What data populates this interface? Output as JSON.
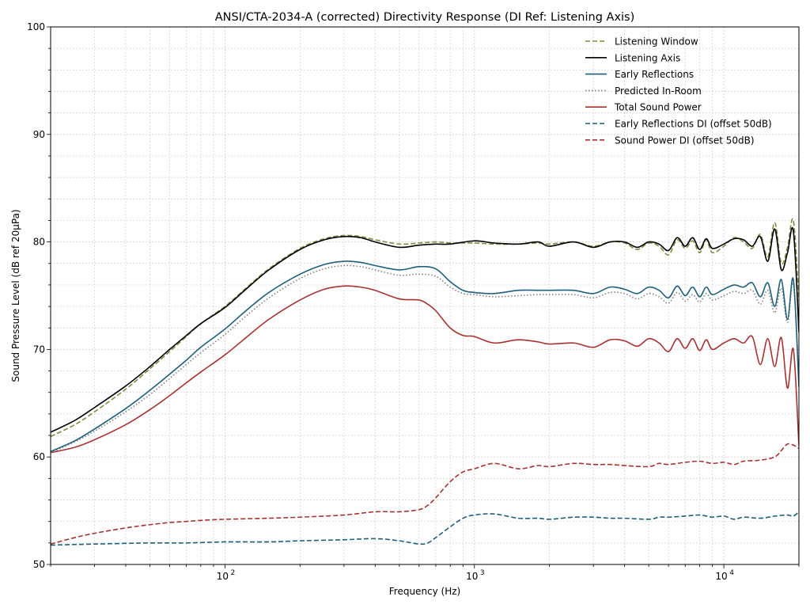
{
  "chart_data": {
    "type": "line",
    "title": "ANSI/CTA-2034-A (corrected) Directivity Response (DI Ref: Listening Axis)",
    "xlabel": "Frequency (Hz)",
    "ylabel": "Sound Pressure Level (dB ref 20µPa)",
    "xscale": "log",
    "xlim": [
      20,
      20000
    ],
    "ylim": [
      50,
      100
    ],
    "grid": true,
    "legend_position": "top-right",
    "x_major_ticks": [
      {
        "value": 100,
        "label": "10",
        "exp": "2"
      },
      {
        "value": 1000,
        "label": "10",
        "exp": "3"
      },
      {
        "value": 10000,
        "label": "10",
        "exp": "4"
      }
    ],
    "y_ticks": [
      50,
      60,
      70,
      80,
      90,
      100
    ],
    "y_tick_labels": [
      "50",
      "60",
      "70",
      "80",
      "90",
      "100"
    ],
    "series": [
      {
        "name": "Listening Window",
        "color": "#7f8c3f",
        "dash": "dashed",
        "x": [
          20,
          25,
          30,
          40,
          50,
          60,
          70,
          80,
          100,
          120,
          150,
          200,
          250,
          300,
          350,
          400,
          500,
          600,
          700,
          800,
          1000,
          1200,
          1500,
          1800,
          2000,
          2500,
          3000,
          3500,
          4000,
          4500,
          5000,
          5500,
          6000,
          6500,
          7000,
          7500,
          8000,
          8500,
          9000,
          10000,
          11000,
          12000,
          13000,
          14000,
          15000,
          16000,
          17000,
          18000,
          19000,
          20000
        ],
        "y": [
          61.9,
          63.0,
          64.2,
          66.3,
          68.2,
          69.8,
          71.2,
          72.4,
          74.0,
          75.6,
          77.5,
          79.4,
          80.3,
          80.6,
          80.5,
          80.2,
          79.8,
          79.9,
          80.0,
          79.9,
          79.9,
          79.8,
          79.8,
          79.9,
          79.8,
          80.0,
          79.6,
          80.0,
          79.9,
          79.3,
          79.9,
          79.6,
          78.8,
          80.2,
          79.4,
          80.1,
          79.0,
          80.2,
          79.0,
          79.6,
          80.4,
          80.0,
          79.4,
          80.7,
          78.6,
          81.8,
          78.0,
          79.5,
          82.0,
          74.5
        ]
      },
      {
        "name": "Listening Axis",
        "color": "#000000",
        "dash": "solid",
        "x": [
          20,
          25,
          30,
          40,
          50,
          60,
          70,
          80,
          100,
          120,
          150,
          200,
          250,
          300,
          350,
          400,
          500,
          600,
          700,
          800,
          1000,
          1200,
          1500,
          1800,
          2000,
          2500,
          3000,
          3500,
          4000,
          4500,
          5000,
          5500,
          6000,
          6500,
          7000,
          7500,
          8000,
          8500,
          9000,
          10000,
          11000,
          12000,
          13000,
          14000,
          15000,
          16000,
          17000,
          18000,
          19000,
          20000
        ],
        "y": [
          62.3,
          63.4,
          64.6,
          66.6,
          68.4,
          70.0,
          71.3,
          72.4,
          73.9,
          75.5,
          77.4,
          79.3,
          80.2,
          80.5,
          80.4,
          80.0,
          79.5,
          79.7,
          79.8,
          79.8,
          80.1,
          79.9,
          79.8,
          80.0,
          79.6,
          80.0,
          79.5,
          80.0,
          80.0,
          79.5,
          80.0,
          79.8,
          79.2,
          80.4,
          79.6,
          80.4,
          79.3,
          80.3,
          79.4,
          79.8,
          80.3,
          80.2,
          79.6,
          80.5,
          78.2,
          81.2,
          77.4,
          79.0,
          81.0,
          71.6
        ]
      },
      {
        "name": "Early Reflections",
        "color": "#1f5f7a",
        "dash": "solid",
        "x": [
          20,
          25,
          30,
          40,
          50,
          60,
          70,
          80,
          100,
          120,
          150,
          200,
          250,
          300,
          350,
          400,
          500,
          600,
          700,
          800,
          900,
          1000,
          1200,
          1500,
          1800,
          2000,
          2500,
          3000,
          3500,
          4000,
          4500,
          5000,
          5500,
          6000,
          6500,
          7000,
          7500,
          8000,
          8500,
          9000,
          10000,
          11000,
          12000,
          13000,
          14000,
          15000,
          16000,
          17000,
          18000,
          19000,
          20000
        ],
        "y": [
          60.5,
          61.5,
          62.6,
          64.5,
          66.2,
          67.7,
          69.0,
          70.2,
          71.9,
          73.5,
          75.3,
          77.0,
          77.9,
          78.2,
          78.1,
          77.8,
          77.4,
          77.7,
          77.5,
          76.3,
          75.5,
          75.3,
          75.2,
          75.5,
          75.5,
          75.5,
          75.5,
          75.2,
          75.8,
          75.6,
          75.2,
          75.8,
          75.5,
          74.8,
          75.9,
          75.0,
          75.8,
          74.9,
          75.8,
          75.1,
          75.6,
          76.0,
          75.8,
          76.2,
          74.9,
          76.2,
          74.0,
          76.5,
          72.8,
          76.5,
          66.5
        ]
      },
      {
        "name": "Predicted In-Room",
        "color": "#808080",
        "dash": "dotted",
        "x": [
          20,
          25,
          30,
          40,
          50,
          60,
          70,
          80,
          100,
          120,
          150,
          200,
          250,
          300,
          350,
          400,
          500,
          600,
          700,
          800,
          900,
          1000,
          1200,
          1500,
          1800,
          2000,
          2500,
          3000,
          3500,
          4000,
          4500,
          5000,
          5500,
          6000,
          6500,
          7000,
          7500,
          8000,
          8500,
          9000,
          10000,
          11000,
          12000,
          13000,
          14000,
          15000,
          16000,
          17000,
          18000,
          19000,
          20000
        ],
        "y": [
          60.4,
          61.4,
          62.4,
          64.2,
          65.8,
          67.3,
          68.6,
          69.7,
          71.4,
          73.0,
          74.8,
          76.6,
          77.5,
          77.8,
          77.7,
          77.4,
          76.9,
          77.0,
          76.8,
          75.8,
          75.2,
          75.1,
          74.9,
          75.0,
          75.1,
          75.1,
          75.1,
          74.8,
          75.3,
          75.2,
          74.7,
          75.2,
          74.9,
          74.3,
          75.3,
          74.5,
          75.1,
          74.4,
          75.2,
          74.6,
          75.0,
          75.4,
          75.2,
          75.5,
          74.2,
          75.5,
          73.4,
          75.7,
          72.5,
          76.1,
          67.0
        ]
      },
      {
        "name": "Total Sound Power",
        "color": "#a83232",
        "dash": "solid",
        "x": [
          20,
          25,
          30,
          40,
          50,
          60,
          70,
          80,
          100,
          120,
          150,
          200,
          250,
          300,
          350,
          400,
          500,
          600,
          650,
          700,
          800,
          900,
          1000,
          1200,
          1500,
          1800,
          2000,
          2500,
          3000,
          3500,
          4000,
          4500,
          5000,
          5500,
          6000,
          6500,
          7000,
          7500,
          8000,
          8500,
          9000,
          10000,
          11000,
          12000,
          13000,
          14000,
          15000,
          16000,
          17000,
          18000,
          19000,
          20000
        ],
        "y": [
          60.4,
          60.9,
          61.6,
          63.0,
          64.4,
          65.7,
          66.9,
          67.9,
          69.5,
          71.0,
          72.8,
          74.6,
          75.6,
          75.9,
          75.8,
          75.5,
          74.7,
          74.6,
          74.2,
          73.6,
          72.0,
          71.3,
          71.2,
          70.6,
          70.9,
          70.7,
          70.5,
          70.6,
          70.2,
          70.9,
          70.8,
          70.3,
          71.0,
          70.6,
          69.8,
          71.0,
          70.1,
          71.0,
          69.9,
          70.9,
          70.0,
          70.6,
          71.0,
          70.6,
          71.2,
          68.6,
          71.0,
          68.4,
          71.1,
          66.4,
          70.0,
          61.0
        ]
      },
      {
        "name": "Early Reflections DI (offset 50dB)",
        "color": "#1f5f7a",
        "dash": "dashed",
        "x": [
          20,
          30,
          50,
          70,
          100,
          150,
          200,
          300,
          400,
          500,
          600,
          650,
          700,
          800,
          900,
          1000,
          1200,
          1500,
          1800,
          2000,
          2500,
          3000,
          3500,
          4000,
          5000,
          5500,
          6000,
          7000,
          8000,
          9000,
          10000,
          11000,
          12000,
          14000,
          16000,
          18000,
          19000,
          20000
        ],
        "y": [
          51.8,
          51.9,
          52.0,
          52.0,
          52.1,
          52.1,
          52.2,
          52.3,
          52.4,
          52.2,
          51.9,
          52.0,
          52.5,
          53.5,
          54.3,
          54.6,
          54.7,
          54.3,
          54.3,
          54.2,
          54.4,
          54.4,
          54.3,
          54.3,
          54.2,
          54.4,
          54.4,
          54.5,
          54.6,
          54.4,
          54.5,
          54.2,
          54.4,
          54.3,
          54.5,
          54.6,
          54.5,
          54.9
        ]
      },
      {
        "name": "Sound Power DI (offset 50dB)",
        "color": "#a83232",
        "dash": "dashed",
        "x": [
          20,
          25,
          30,
          40,
          50,
          60,
          70,
          80,
          100,
          150,
          200,
          300,
          400,
          500,
          600,
          650,
          700,
          800,
          900,
          1000,
          1200,
          1500,
          1800,
          2000,
          2500,
          3000,
          3500,
          4000,
          5000,
          5500,
          6000,
          7000,
          8000,
          9000,
          10000,
          11000,
          12000,
          14000,
          16000,
          17000,
          18000,
          19000,
          20000
        ],
        "y": [
          51.9,
          52.5,
          52.9,
          53.4,
          53.7,
          53.9,
          54.0,
          54.1,
          54.2,
          54.3,
          54.4,
          54.6,
          54.9,
          54.9,
          55.1,
          55.5,
          56.2,
          57.7,
          58.6,
          58.9,
          59.4,
          58.9,
          59.2,
          59.1,
          59.4,
          59.3,
          59.3,
          59.2,
          59.1,
          59.4,
          59.3,
          59.5,
          59.6,
          59.4,
          59.5,
          59.3,
          59.6,
          59.7,
          60.0,
          60.6,
          61.2,
          61.1,
          60.8
        ]
      }
    ]
  }
}
